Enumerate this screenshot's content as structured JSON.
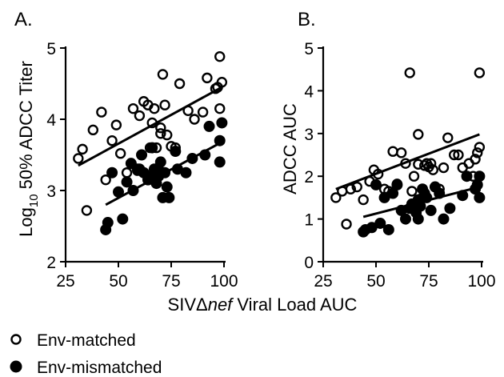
{
  "xlabel_prefix": "SIVΔ",
  "xlabel_italic": "nef",
  "xlabel_suffix": " Viral Load AUC",
  "legend": [
    {
      "label": "Env-matched",
      "marker": "open-circle"
    },
    {
      "label": "Env-mismatched",
      "marker": "filled-circle"
    }
  ],
  "chart_data": [
    {
      "type": "scatter",
      "panel_label": "A.",
      "ylabel_main": "Log",
      "ylabel_sub": "10",
      "ylabel_rest": " 50% ADCC Titer",
      "xlim": [
        25,
        100
      ],
      "ylim": [
        2,
        5
      ],
      "xticks": [
        "25",
        "50",
        "75",
        "100"
      ],
      "yticks": [
        "2",
        "3",
        "4",
        "5"
      ],
      "series": [
        {
          "name": "Env-matched",
          "marker": "open",
          "x": [
            31,
            33,
            35,
            38,
            42,
            44,
            47,
            49,
            51,
            54,
            57,
            59,
            60,
            62,
            64,
            65,
            66,
            67,
            68,
            69,
            70,
            70,
            71,
            72,
            73,
            75,
            77,
            79,
            83,
            86,
            90,
            92,
            96,
            97,
            98,
            98,
            99
          ],
          "y": [
            3.45,
            3.58,
            2.72,
            3.85,
            4.1,
            3.15,
            3.7,
            3.92,
            3.52,
            3.25,
            4.15,
            3.28,
            4.05,
            4.25,
            4.2,
            3.6,
            3.95,
            4.15,
            3.6,
            3.3,
            3.8,
            3.88,
            4.63,
            4.2,
            3.78,
            3.62,
            3.6,
            4.5,
            4.12,
            4.0,
            4.1,
            4.58,
            4.43,
            4.45,
            4.88,
            4.15,
            4.52
          ]
        },
        {
          "name": "Env-mismatched",
          "marker": "filled",
          "x": [
            44,
            45,
            47,
            50,
            52,
            54,
            56,
            57,
            59,
            60,
            61,
            62,
            64,
            65,
            66,
            67,
            68,
            69,
            70,
            70,
            71,
            72,
            73,
            74,
            77,
            78,
            82,
            85,
            91,
            93,
            98,
            98,
            99
          ],
          "y": [
            2.45,
            2.55,
            3.25,
            2.98,
            2.6,
            3.12,
            3.38,
            3.0,
            3.3,
            3.3,
            3.5,
            3.25,
            3.15,
            3.2,
            3.6,
            3.3,
            3.1,
            3.2,
            3.4,
            3.25,
            2.9,
            3.25,
            3.05,
            2.9,
            3.55,
            3.3,
            3.25,
            3.45,
            3.5,
            3.9,
            3.4,
            3.7,
            3.95
          ]
        }
      ],
      "fit_lines": [
        {
          "series": "Env-matched",
          "x": [
            31,
            99
          ],
          "y": [
            3.35,
            4.45
          ]
        },
        {
          "series": "Env-mismatched",
          "x": [
            44,
            99
          ],
          "y": [
            2.8,
            3.68
          ]
        }
      ]
    },
    {
      "type": "scatter",
      "panel_label": "B.",
      "ylabel_main": "ADCC AUC",
      "ylabel_sub": "",
      "ylabel_rest": "",
      "xlim": [
        25,
        100
      ],
      "ylim": [
        0,
        5
      ],
      "xticks": [
        "25",
        "50",
        "75",
        "100"
      ],
      "yticks": [
        "0",
        "1",
        "2",
        "3",
        "4",
        "5"
      ],
      "series": [
        {
          "name": "Env-matched",
          "marker": "open",
          "x": [
            31,
            34,
            36,
            38,
            41,
            44,
            47,
            49,
            51,
            54,
            56,
            58,
            60,
            62,
            64,
            66,
            67,
            68,
            70,
            70,
            71,
            72,
            73,
            74,
            75,
            76,
            77,
            80,
            82,
            84,
            87,
            89,
            91,
            94,
            96,
            97,
            98,
            99,
            99
          ],
          "y": [
            1.5,
            1.65,
            0.88,
            1.7,
            1.75,
            1.45,
            1.88,
            2.15,
            2.05,
            1.7,
            1.65,
            2.58,
            1.82,
            2.55,
            2.3,
            4.42,
            1.65,
            2.0,
            2.98,
            2.28,
            1.45,
            1.5,
            2.25,
            2.3,
            2.22,
            2.3,
            2.15,
            1.7,
            2.2,
            2.9,
            2.5,
            2.5,
            2.2,
            2.3,
            2.0,
            2.4,
            2.55,
            4.42,
            2.68
          ]
        },
        {
          "name": "Env-mismatched",
          "marker": "filled",
          "x": [
            44,
            45,
            48,
            50,
            52,
            54,
            56,
            58,
            60,
            62,
            64,
            66,
            67,
            68,
            69,
            70,
            70,
            71,
            72,
            73,
            74,
            76,
            78,
            80,
            82,
            85,
            91,
            93,
            97,
            98,
            99,
            99
          ],
          "y": [
            0.7,
            0.75,
            0.8,
            1.8,
            0.9,
            1.5,
            0.75,
            1.6,
            1.8,
            1.2,
            1.0,
            1.25,
            1.35,
            1.25,
            1.15,
            1.0,
            1.45,
            1.3,
            1.7,
            1.6,
            1.5,
            1.2,
            1.75,
            1.6,
            1.0,
            1.25,
            1.55,
            2.0,
            1.7,
            1.8,
            2.0,
            1.5
          ]
        }
      ],
      "fit_lines": [
        {
          "series": "Env-matched",
          "x": [
            31,
            99
          ],
          "y": [
            1.7,
            2.98
          ]
        },
        {
          "series": "Env-mismatched",
          "x": [
            44,
            99
          ],
          "y": [
            1.05,
            1.75
          ]
        }
      ]
    }
  ]
}
